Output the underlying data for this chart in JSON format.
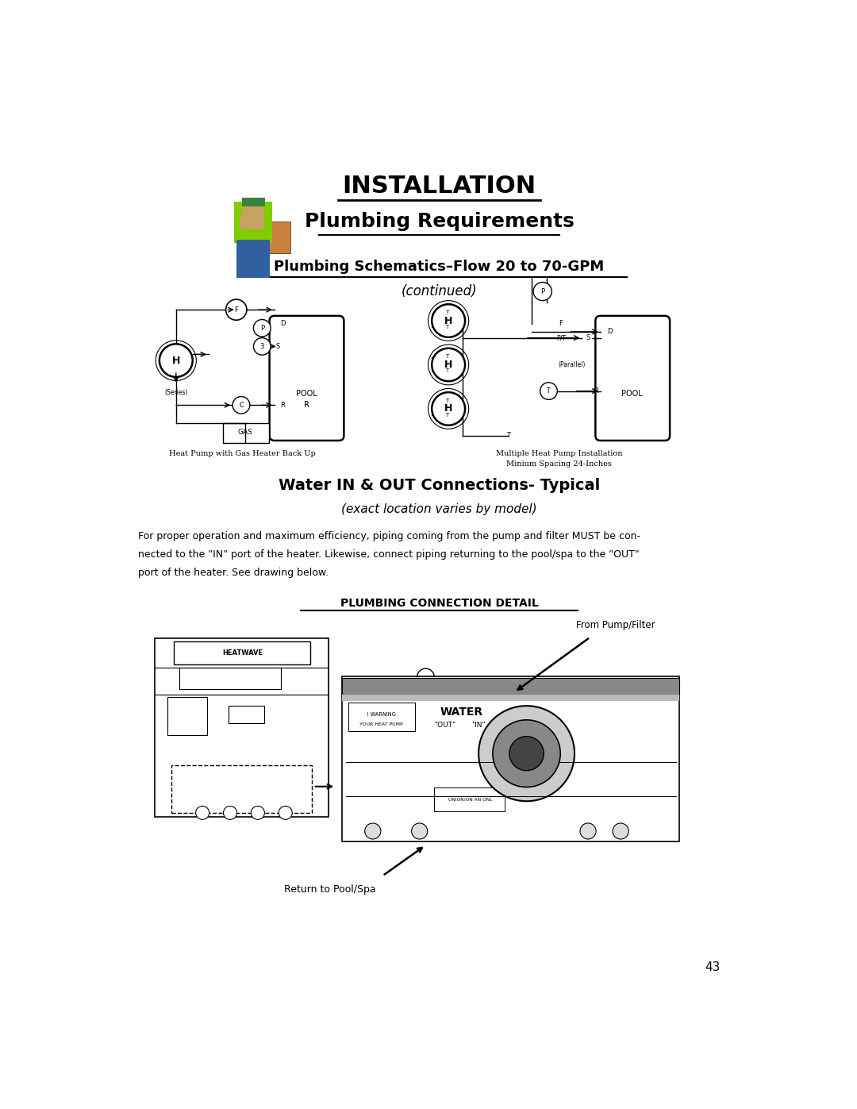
{
  "title_installation": "INSTALLATION",
  "title_plumbing": "Plumbing Requirements",
  "section1_title": "Plumbing Schematics–Flow 20 to 70-GPM",
  "section1_subtitle": "(continued)",
  "section2_title": "Water IN & OUT Connections- Typical",
  "section2_subtitle": "(exact location varies by model)",
  "body_line1": "For proper operation and maximum efficiency, piping coming from the pump and filter MUST be con-",
  "body_line2": "nected to the \"IN\" port of the heater. Likewise, connect piping returning to the pool/spa to the \"OUT\"",
  "body_line3": "port of the heater. See drawing below.",
  "plumbing_detail_title": "PLUMBING CONNECTION DETAIL",
  "caption_left": "Heat Pump with Gas Heater Back Up",
  "caption_right1": "Multiple Heat Pump Installation",
  "caption_right2": "Minium Spacing 24-Inches",
  "label_series": "(Series)",
  "label_parallel": "(Parallel)",
  "label_gas": "GAS",
  "label_pool1": "POOL",
  "label_pool2": "POOL",
  "label_from_pump": "From Pump/Filter",
  "label_return": "Return to Pool/Spa",
  "page_number": "43",
  "bg_color": "#ffffff",
  "text_color": "#000000"
}
